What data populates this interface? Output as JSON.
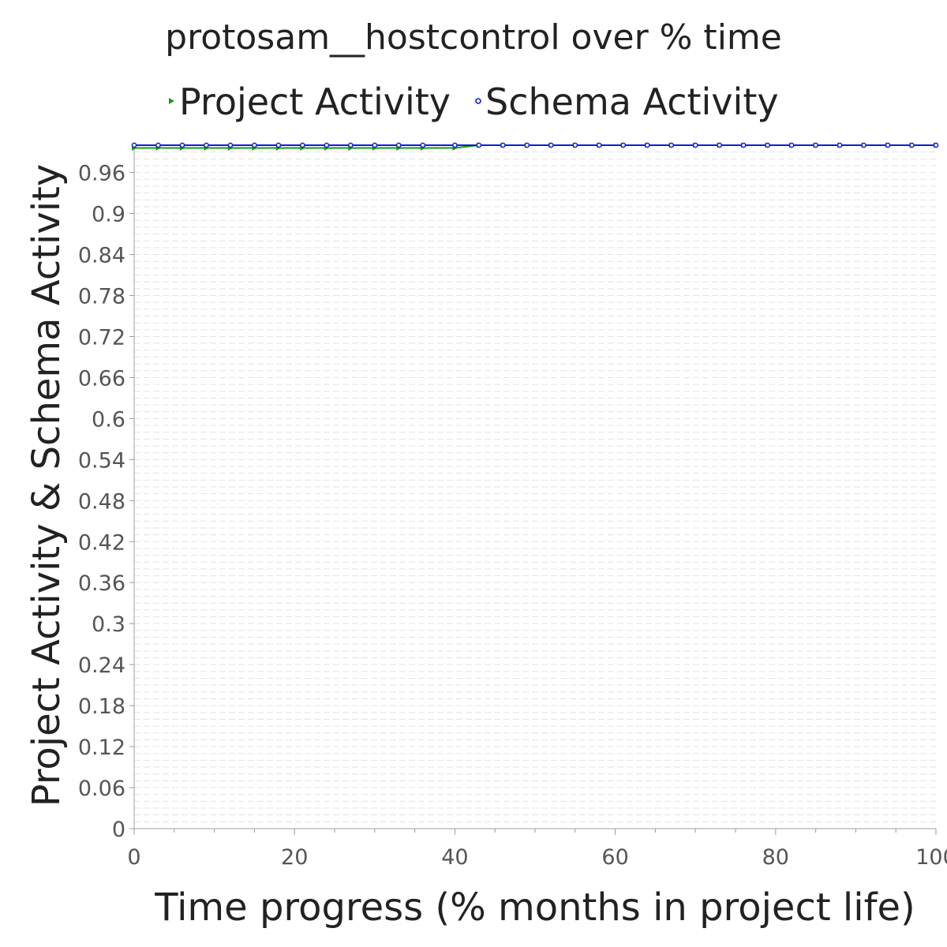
{
  "chart_data": {
    "type": "line",
    "title": "protosam__hostcontrol over % time",
    "xlabel": "Time progress (% months in project life)",
    "ylabel": "Project Activity & Schema Activity",
    "xlim": [
      0,
      100
    ],
    "ylim": [
      0,
      1.0
    ],
    "x_ticks": [
      "0",
      "20",
      "40",
      "60",
      "80",
      "100"
    ],
    "y_ticks": [
      "0",
      "0.06",
      "0.12",
      "0.18",
      "0.24",
      "0.3",
      "0.36",
      "0.42",
      "0.48",
      "0.54",
      "0.6",
      "0.66",
      "0.72",
      "0.78",
      "0.84",
      "0.9",
      "0.96"
    ],
    "grid": true,
    "legend_position": "top",
    "series": [
      {
        "name": "Project Activity",
        "color": "#1a9a1a",
        "marker": "triangle-right",
        "x": [
          0,
          3,
          6,
          9,
          12,
          15,
          18,
          21,
          24,
          27,
          30,
          33,
          36,
          40,
          43,
          46,
          49,
          52,
          55,
          58,
          61,
          64,
          67,
          70,
          73,
          76,
          79,
          82,
          85,
          88,
          91,
          94,
          97,
          100
        ],
        "y": [
          0.996,
          0.996,
          0.996,
          0.996,
          0.996,
          0.996,
          0.996,
          0.996,
          0.996,
          0.996,
          0.996,
          0.996,
          0.996,
          0.996,
          1.0,
          1.0,
          1.0,
          1.0,
          1.0,
          1.0,
          1.0,
          1.0,
          1.0,
          1.0,
          1.0,
          1.0,
          1.0,
          1.0,
          1.0,
          1.0,
          1.0,
          1.0,
          1.0,
          1.0
        ]
      },
      {
        "name": "Schema Activity",
        "color": "#0a1fd6",
        "marker": "circle",
        "x": [
          0,
          3,
          6,
          9,
          12,
          15,
          18,
          21,
          24,
          27,
          30,
          33,
          36,
          40,
          43,
          46,
          49,
          52,
          55,
          58,
          61,
          64,
          67,
          70,
          73,
          76,
          79,
          82,
          85,
          88,
          91,
          94,
          97,
          100
        ],
        "y": [
          1.0,
          1.0,
          1.0,
          1.0,
          1.0,
          1.0,
          1.0,
          1.0,
          1.0,
          1.0,
          1.0,
          1.0,
          1.0,
          1.0,
          1.0,
          1.0,
          1.0,
          1.0,
          1.0,
          1.0,
          1.0,
          1.0,
          1.0,
          1.0,
          1.0,
          1.0,
          1.0,
          1.0,
          1.0,
          1.0,
          1.0,
          1.0,
          1.0,
          1.0
        ]
      }
    ]
  }
}
